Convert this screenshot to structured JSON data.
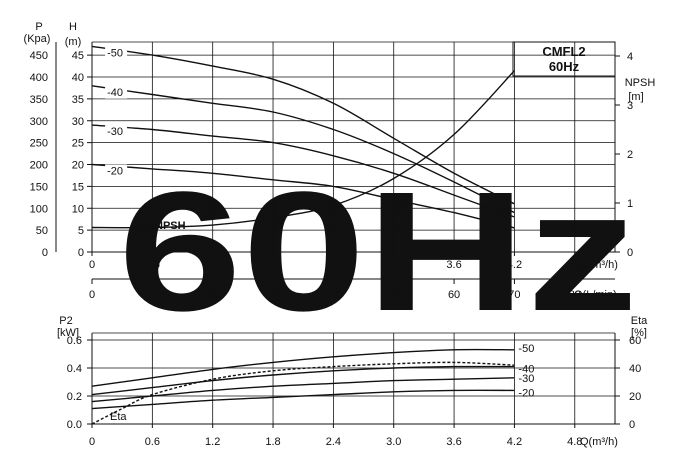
{
  "watermark": "60Hz",
  "title_box": {
    "line1": "CMFL2",
    "line2": "60Hz"
  },
  "colors": {
    "ink": "#111111",
    "watermark": "#aaaaaa",
    "background": "#ffffff"
  },
  "chart_data": [
    {
      "type": "line",
      "name": "pump-curve",
      "x_label": "Q(m³/h)",
      "x2_label": "Q(L/min)",
      "x_ticks": [
        "0",
        "0.6",
        "1.2",
        "1.8",
        "2.4",
        "3.0",
        "3.6",
        "4.2",
        "4.8"
      ],
      "x2_ticks": [
        "0",
        "10",
        "20",
        "30",
        "40",
        "50",
        "60",
        "70",
        "80"
      ],
      "xlim": [
        0,
        5.2
      ],
      "y_left_pressure": {
        "label1": "P",
        "label2": "(Kpa)",
        "ticks": [
          "0",
          "50",
          "100",
          "150",
          "200",
          "250",
          "300",
          "350",
          "400",
          "450"
        ]
      },
      "y_left_head": {
        "label1": "H",
        "label2": "(m)",
        "ticks": [
          "0",
          "5",
          "10",
          "15",
          "20",
          "25",
          "30",
          "35",
          "40",
          "45"
        ],
        "ylim": [
          0,
          48
        ]
      },
      "y_right_npsh": {
        "label1": "NPSH",
        "label2": "[m]",
        "ticks": [
          "0",
          "1",
          "2",
          "3",
          "4"
        ],
        "ylim": [
          0,
          4
        ]
      },
      "head_series": [
        {
          "name": "-50",
          "x": [
            0,
            0.6,
            1.2,
            1.8,
            2.4,
            3.0,
            3.6,
            4.2
          ],
          "y": [
            47,
            45,
            42.5,
            39.5,
            34,
            26,
            18,
            11
          ]
        },
        {
          "name": "-40",
          "x": [
            0,
            0.6,
            1.2,
            1.8,
            2.4,
            3.0,
            3.6,
            4.2
          ],
          "y": [
            38,
            36,
            34,
            32,
            28,
            22.5,
            16,
            9
          ]
        },
        {
          "name": "-30",
          "x": [
            0,
            0.6,
            1.2,
            1.8,
            2.4,
            3.0,
            3.6,
            4.2
          ],
          "y": [
            29,
            28,
            26.5,
            25,
            22,
            18,
            13,
            8
          ]
        },
        {
          "name": "-20",
          "x": [
            0,
            0.6,
            1.2,
            1.8,
            2.4,
            3.0,
            3.6,
            4.2
          ],
          "y": [
            20,
            19,
            18,
            16.5,
            15,
            12,
            9,
            5.5
          ]
        }
      ],
      "npsh_series": {
        "name": "NPSH",
        "x": [
          0,
          0.6,
          1.2,
          1.8,
          2.4,
          3.0,
          3.6,
          4.2
        ],
        "y": [
          0.5,
          0.5,
          0.55,
          0.7,
          0.95,
          1.5,
          2.4,
          3.7
        ]
      }
    },
    {
      "type": "line",
      "name": "power-curve",
      "x_label": "Q(m³/h)",
      "x_ticks": [
        "0",
        "0.6",
        "1.2",
        "1.8",
        "2.4",
        "3.0",
        "3.6",
        "4.2",
        "4.8"
      ],
      "xlim": [
        0,
        5.2
      ],
      "y_left_power": {
        "label1": "P2",
        "label2": "[kW]",
        "ticks": [
          "0.0",
          "0.2",
          "0.4",
          "0.6"
        ],
        "ylim": [
          0,
          0.65
        ]
      },
      "y_right_eta": {
        "label1": "Eta",
        "label2": "[%]",
        "ticks": [
          "0",
          "20",
          "40",
          "60"
        ],
        "ylim": [
          0,
          65
        ]
      },
      "power_series": [
        {
          "name": "-50",
          "x": [
            0,
            0.6,
            1.2,
            1.8,
            2.4,
            3.0,
            3.6,
            4.2
          ],
          "y": [
            0.27,
            0.33,
            0.39,
            0.44,
            0.48,
            0.51,
            0.53,
            0.53
          ]
        },
        {
          "name": "-40",
          "x": [
            0,
            0.6,
            1.2,
            1.8,
            2.4,
            3.0,
            3.6,
            4.2
          ],
          "y": [
            0.21,
            0.26,
            0.31,
            0.35,
            0.38,
            0.4,
            0.41,
            0.41
          ]
        },
        {
          "name": "-30",
          "x": [
            0,
            0.6,
            1.2,
            1.8,
            2.4,
            3.0,
            3.6,
            4.2
          ],
          "y": [
            0.16,
            0.2,
            0.24,
            0.27,
            0.29,
            0.31,
            0.32,
            0.33
          ]
        },
        {
          "name": "-20",
          "x": [
            0,
            0.6,
            1.2,
            1.8,
            2.4,
            3.0,
            3.6,
            4.2
          ],
          "y": [
            0.11,
            0.14,
            0.17,
            0.19,
            0.21,
            0.23,
            0.24,
            0.24
          ]
        }
      ],
      "eta_series": {
        "name": "Eta",
        "x": [
          0,
          0.3,
          0.6,
          1.2,
          1.8,
          2.4,
          3.0,
          3.6,
          4.2
        ],
        "y": [
          0,
          11,
          21,
          32,
          38,
          41,
          43,
          44,
          42
        ]
      }
    }
  ]
}
